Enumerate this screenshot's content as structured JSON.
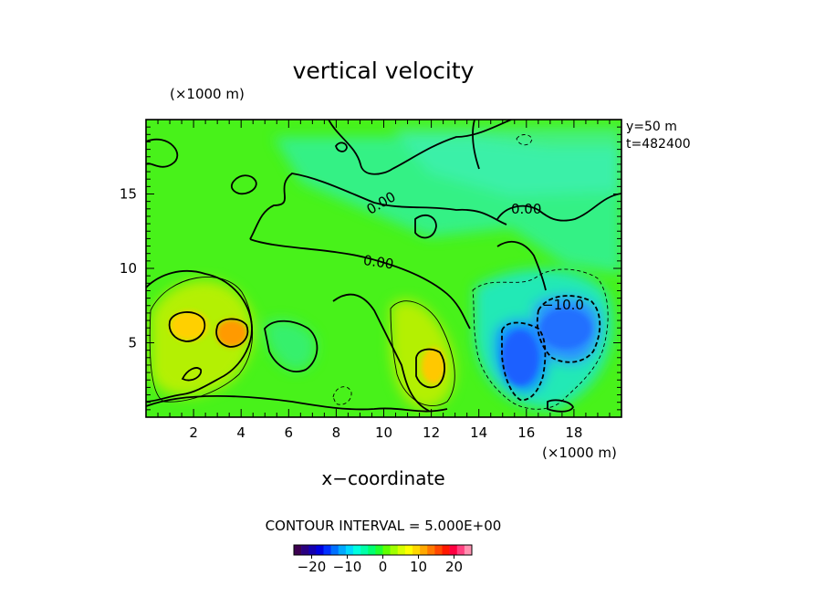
{
  "chart_data": {
    "type": "heatmap",
    "title": "vertical velocity",
    "xlabel": "x−coordinate",
    "x_unit": "(×1000 m)",
    "y_unit": "(×1000 m)",
    "xlim": [
      0,
      20
    ],
    "ylim": [
      0,
      20
    ],
    "x_ticks": [
      "2",
      "4",
      "6",
      "8",
      "10",
      "12",
      "14",
      "16",
      "18"
    ],
    "y_ticks": [
      "5",
      "10",
      "15"
    ],
    "annotation_y": "y=50  m",
    "annotation_t": "t=482400",
    "contour_interval_text": "CONTOUR INTERVAL = 5.000E+00",
    "contour_labels": [
      "0.00",
      "0.00",
      "0.00",
      "−10.0"
    ],
    "colorbar": {
      "range": [
        -25,
        25
      ],
      "tick_labels": [
        "−20",
        "−10",
        "0",
        "10",
        "20"
      ],
      "colors": [
        "#3c0050",
        "#2a0080",
        "#1400b0",
        "#0000e0",
        "#0030ff",
        "#0070ff",
        "#00a8ff",
        "#00d8ff",
        "#00ffe0",
        "#00ffa8",
        "#00ff70",
        "#20ff30",
        "#60ff00",
        "#a0ff00",
        "#d8ff00",
        "#ffff00",
        "#ffd800",
        "#ffa800",
        "#ff7800",
        "#ff4800",
        "#ff1800",
        "#ff0040",
        "#ff4080",
        "#ff90b0"
      ]
    },
    "features": [
      {
        "kind": "updraft",
        "x": 1.9,
        "y": 6.2,
        "max": 10
      },
      {
        "kind": "updraft",
        "x": 3.7,
        "y": 5.7,
        "max": 13
      },
      {
        "kind": "updraft",
        "x": 12.1,
        "y": 3.4,
        "max": 11
      },
      {
        "kind": "downdraft",
        "x": 15.9,
        "y": 4.0,
        "min": -15
      },
      {
        "kind": "downdraft",
        "x": 17.3,
        "y": 6.5,
        "min": -13
      }
    ]
  }
}
